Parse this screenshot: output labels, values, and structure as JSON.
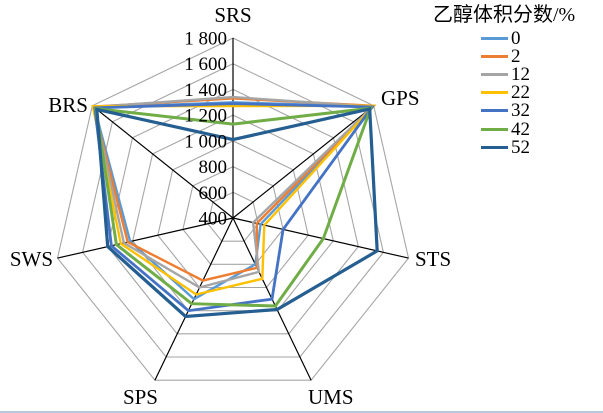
{
  "chart_data": {
    "type": "radar",
    "axes": [
      "SRS",
      "GPS",
      "STS",
      "UMS",
      "SPS",
      "SWS",
      "BRS"
    ],
    "radial_axis": {
      "min": 400,
      "max": 1800,
      "step": 200,
      "tick_labels": [
        "1 800",
        "1 600",
        "1 400",
        "1 200",
        "1 000",
        "800",
        "600",
        "400"
      ]
    },
    "legend_title": "乙醇体积分数/%",
    "grid_color": "#A6A6A6",
    "axis_color": "#000000",
    "series": [
      {
        "name": "0",
        "color": "#5B9BD5",
        "values": [
          1300,
          1790,
          620,
          800,
          1100,
          1220,
          1780
        ]
      },
      {
        "name": "2",
        "color": "#ED7D31",
        "values": [
          1330,
          1800,
          590,
          830,
          940,
          1240,
          1790
        ]
      },
      {
        "name": "12",
        "color": "#A5A5A5",
        "values": [
          1340,
          1790,
          560,
          865,
          1000,
          1270,
          1785
        ]
      },
      {
        "name": "22",
        "color": "#FFC000",
        "values": [
          1270,
          1800,
          650,
          925,
          1060,
          1295,
          1795
        ]
      },
      {
        "name": "32",
        "color": "#4472C4",
        "values": [
          1290,
          1785,
          800,
          1100,
          1200,
          1370,
          1775
        ]
      },
      {
        "name": "42",
        "color": "#70AD47",
        "values": [
          1130,
          1770,
          1120,
          1160,
          1140,
          1330,
          1765
        ]
      },
      {
        "name": "52",
        "color": "#255E91",
        "values": [
          1010,
          1760,
          1550,
          1190,
          1250,
          1400,
          1755
        ]
      }
    ]
  }
}
